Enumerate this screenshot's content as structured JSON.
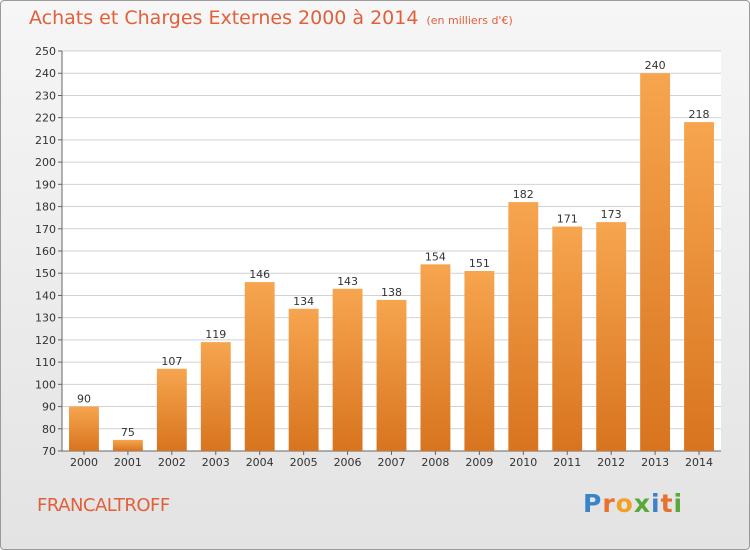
{
  "header": {
    "title": "Achats et Charges Externes 2000 à 2014",
    "unit": "(en milliers d'€)"
  },
  "place": "FRANCALTROFF",
  "logo": {
    "text": "Proxiti",
    "letters": [
      "P",
      "r",
      "o",
      "x",
      "i",
      "t",
      "i"
    ],
    "colors": [
      "#3b83c9",
      "#e8712e",
      "#f2a125",
      "#5aa83a",
      "#3b83c9",
      "#e8712e",
      "#5aa83a"
    ]
  },
  "colors": {
    "title": "#e0603a",
    "bar_top": "#f7a54f",
    "bar_bottom": "#d8741f",
    "grid": "#d2d2d2"
  },
  "chart_data": {
    "type": "bar",
    "title": "Achats et Charges Externes 2000 à 2014",
    "subtitle": "(en milliers d'€)",
    "categories": [
      "2000",
      "2001",
      "2002",
      "2003",
      "2004",
      "2005",
      "2006",
      "2007",
      "2008",
      "2009",
      "2010",
      "2011",
      "2012",
      "2013",
      "2014"
    ],
    "values": [
      90,
      75,
      107,
      119,
      146,
      134,
      143,
      138,
      154,
      151,
      182,
      171,
      173,
      240,
      218
    ],
    "ylim": [
      70,
      250
    ],
    "yticks": [
      70,
      80,
      90,
      100,
      110,
      120,
      130,
      140,
      150,
      160,
      170,
      180,
      190,
      200,
      210,
      220,
      230,
      240,
      250
    ],
    "grid": true,
    "data_labels": true
  }
}
